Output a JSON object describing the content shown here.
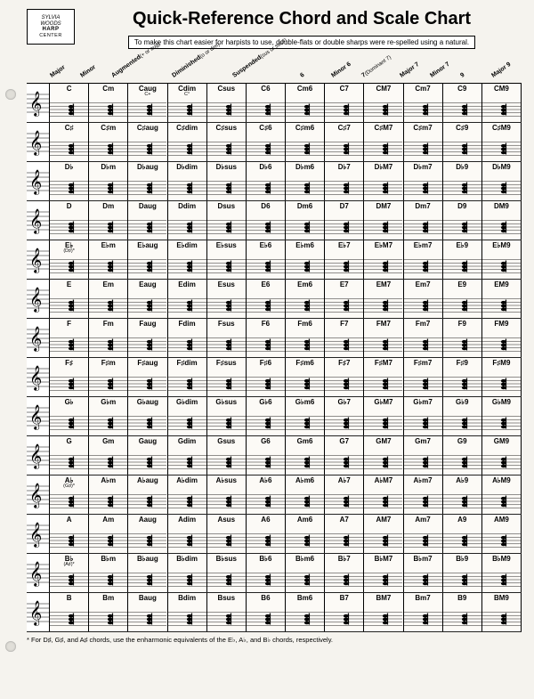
{
  "logo": {
    "l1": "SYLVIA",
    "l2": "WOODS",
    "l3": "HARP",
    "l4": "CENTER"
  },
  "title": "Quick-Reference Chord and Scale Chart",
  "subtitle": "To make this chart easier for harpists to use, double-flats or double sharps were re-spelled using a natural.",
  "columns": [
    {
      "h": "Major",
      "s": ""
    },
    {
      "h": "Minor",
      "s": ""
    },
    {
      "h": "Augmented",
      "s": "(+ or aug)"
    },
    {
      "h": "Diminished",
      "s": "(o or dim)"
    },
    {
      "h": "Suspended",
      "s": "(sus or sus4)"
    },
    {
      "h": "6",
      "s": ""
    },
    {
      "h": "Minor 6",
      "s": ""
    },
    {
      "h": "7",
      "s": "(Dominant 7)"
    },
    {
      "h": "Major 7",
      "s": ""
    },
    {
      "h": "Minor 7",
      "s": ""
    },
    {
      "h": "9",
      "s": ""
    },
    {
      "h": "Major 9",
      "s": ""
    }
  ],
  "roots": [
    {
      "root": "C",
      "note": ""
    },
    {
      "root": "C♯",
      "note": ""
    },
    {
      "root": "D♭",
      "note": ""
    },
    {
      "root": "D",
      "note": ""
    },
    {
      "root": "E♭",
      "note": "(D♯)*"
    },
    {
      "root": "E",
      "note": ""
    },
    {
      "root": "F",
      "note": ""
    },
    {
      "root": "F♯",
      "note": ""
    },
    {
      "root": "G♭",
      "note": ""
    },
    {
      "root": "G",
      "note": ""
    },
    {
      "root": "A♭",
      "note": "(G♯)*"
    },
    {
      "root": "A",
      "note": ""
    },
    {
      "root": "B♭",
      "note": "(A♯)*"
    },
    {
      "root": "B",
      "note": ""
    }
  ],
  "suffixes": [
    "",
    "m",
    "aug",
    "dim",
    "sus",
    "6",
    "m6",
    "7",
    "M7",
    "m7",
    "9",
    "M9"
  ],
  "label_subs": [
    "",
    "",
    "C+",
    "C°",
    "",
    "",
    "",
    "",
    "",
    "",
    "",
    ""
  ],
  "footnote": "* For D♯, G♯, and A♯ chords, use the enharmonic equivalents of the E♭, A♭, and B♭ chords, respectively.",
  "colors": {
    "bg": "#f5f3ee",
    "cell": "#fcfaf6",
    "line": "#000000"
  }
}
